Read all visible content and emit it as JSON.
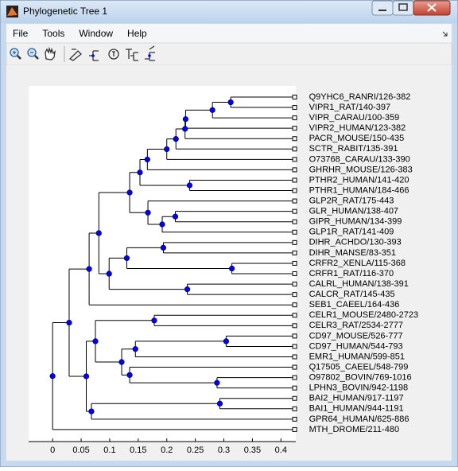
{
  "window": {
    "title": "Phylogenetic Tree 1",
    "menus": [
      "File",
      "Tools",
      "Window",
      "Help"
    ]
  },
  "chart_data": {
    "type": "tree",
    "xlim": [
      -0.042,
      0.426
    ],
    "xticks": [
      0,
      0.05,
      0.1,
      0.15,
      0.2,
      0.25,
      0.3,
      0.35,
      0.4
    ],
    "leaf_x": 0.424,
    "tree": {
      "x": 0,
      "children": [
        {
          "x": 0.029,
          "children": [
            {
              "x": 0.064,
              "children": [
                {
                  "x": 0.081,
                  "children": [
                    {
                      "x": 0.135,
                      "children": [
                        {
                          "x": 0.153,
                          "children": [
                            {
                              "x": 0.166,
                              "children": [
                                {
                                  "x": 0.2,
                                  "children": [
                                    {
                                      "x": 0.216,
                                      "children": [
                                        {
                                          "x": 0.232,
                                          "children": [
                                            {
                                              "x": 0.233,
                                              "children": [
                                                {
                                                  "x": 0.28,
                                                  "children": [
                                                    {
                                                      "x": 0.312,
                                                      "children": [
                                                        {
                                                          "name": "Q9YHC6_RANRI/126-382"
                                                        },
                                                        {
                                                          "name": "VIPR1_RAT/140-397"
                                                        }
                                                      ]
                                                    },
                                                    {
                                                      "name": "VIPR_CARAU/100-359"
                                                    }
                                                  ]
                                                },
                                                {
                                                  "name": "VIPR2_HUMAN/123-382"
                                                }
                                              ]
                                            },
                                            {
                                              "name": "PACR_MOUSE/150-435"
                                            }
                                          ]
                                        },
                                        {
                                          "name": "SCTR_RABIT/135-391"
                                        }
                                      ]
                                    },
                                    {
                                      "name": "O73768_CARAU/133-390"
                                    }
                                  ]
                                },
                                {
                                  "name": "GHRHR_MOUSE/126-383"
                                }
                              ]
                            },
                            {
                              "x": 0.24,
                              "children": [
                                {
                                  "name": "PTHR2_HUMAN/141-420"
                                },
                                {
                                  "name": "PTHR1_HUMAN/184-466"
                                }
                              ]
                            }
                          ]
                        },
                        {
                          "x": 0.167,
                          "children": [
                            {
                              "name": "GLP2R_RAT/175-443"
                            },
                            {
                              "x": 0.192,
                              "children": [
                                {
                                  "x": 0.215,
                                  "children": [
                                    {
                                      "name": "GLR_HUMAN/138-407"
                                    },
                                    {
                                      "name": "GIPR_HUMAN/134-399"
                                    }
                                  ]
                                },
                                {
                                  "name": "GLP1R_RAT/141-409"
                                }
                              ]
                            }
                          ]
                        }
                      ]
                    },
                    {
                      "x": 0.099,
                      "children": [
                        {
                          "x": 0.13,
                          "children": [
                            {
                              "x": 0.194,
                              "children": [
                                {
                                  "name": "DIHR_ACHDO/130-393"
                                },
                                {
                                  "name": "DIHR_MANSE/83-351"
                                }
                              ]
                            },
                            {
                              "x": 0.314,
                              "children": [
                                {
                                  "name": "CRFR2_XENLA/115-368"
                                },
                                {
                                  "name": "CRFR1_RAT/116-370"
                                }
                              ]
                            }
                          ]
                        },
                        {
                          "x": 0.236,
                          "children": [
                            {
                              "name": "CALRL_HUMAN/138-391"
                            },
                            {
                              "name": "CALCR_RAT/145-435"
                            }
                          ]
                        }
                      ]
                    }
                  ]
                },
                {
                  "name": "SEB1_CAEEL/164-436"
                }
              ]
            },
            {
              "x": 0.059,
              "children": [
                {
                  "x": 0.075,
                  "children": [
                    {
                      "x": 0.178,
                      "children": [
                        {
                          "name": "CELR1_MOUSE/2480-2723"
                        },
                        {
                          "name": "CELR3_RAT/2534-2777"
                        }
                      ]
                    },
                    {
                      "x": 0.121,
                      "children": [
                        {
                          "x": 0.145,
                          "children": [
                            {
                              "x": 0.304,
                              "children": [
                                {
                                  "name": "CD97_MOUSE/526-777"
                                },
                                {
                                  "name": "CD97_HUMAN/544-793"
                                }
                              ]
                            },
                            {
                              "name": "EMR1_HUMAN/599-851"
                            }
                          ]
                        },
                        {
                          "x": 0.135,
                          "children": [
                            {
                              "name": "Q17505_CAEEL/548-799"
                            },
                            {
                              "x": 0.288,
                              "children": [
                                {
                                  "name": "O97802_BOVIN/769-1016"
                                },
                                {
                                  "name": "LPHN3_BOVIN/942-1198"
                                }
                              ]
                            }
                          ]
                        }
                      ]
                    }
                  ]
                },
                {
                  "x": 0.068,
                  "children": [
                    {
                      "x": 0.293,
                      "children": [
                        {
                          "name": "BAI2_HUMAN/917-1197"
                        },
                        {
                          "name": "BAI1_HUMAN/944-1191"
                        }
                      ]
                    },
                    {
                      "name": "GPR64_HUMAN/625-886"
                    }
                  ]
                }
              ]
            }
          ]
        },
        {
          "name": "MTH_DROME/211-480"
        }
      ]
    }
  }
}
